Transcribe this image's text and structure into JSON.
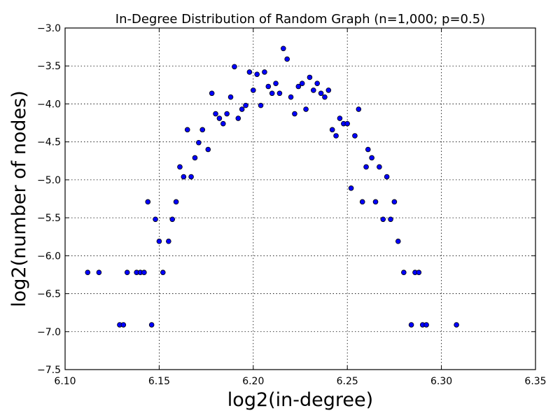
{
  "chart_data": {
    "type": "scatter",
    "title": "In-Degree Distribution of Random Graph (n=1,000; p=0.5)",
    "xlabel": "log2(in-degree)",
    "ylabel": "log2(number of nodes)",
    "xlim": [
      6.1,
      6.35
    ],
    "ylim": [
      -7.5,
      -3.0
    ],
    "xticks": [
      "6.10",
      "6.15",
      "6.20",
      "6.25",
      "6.30",
      "6.35"
    ],
    "yticks": [
      "−3.0",
      "−3.5",
      "−4.0",
      "−4.5",
      "−5.0",
      "−5.5",
      "−6.0",
      "−6.5",
      "−7.0",
      "−7.5"
    ],
    "xtick_values": [
      6.1,
      6.15,
      6.2,
      6.25,
      6.3,
      6.35
    ],
    "ytick_values": [
      -3.0,
      -3.5,
      -4.0,
      -4.5,
      -5.0,
      -5.5,
      -6.0,
      -6.5,
      -7.0,
      -7.5
    ],
    "grid": true,
    "marker_color": "#0000ff",
    "points": [
      [
        6.112,
        -6.22
      ],
      [
        6.118,
        -6.22
      ],
      [
        6.129,
        -6.91
      ],
      [
        6.131,
        -6.91
      ],
      [
        6.133,
        -6.22
      ],
      [
        6.138,
        -6.22
      ],
      [
        6.14,
        -6.22
      ],
      [
        6.142,
        -6.22
      ],
      [
        6.144,
        -5.29
      ],
      [
        6.146,
        -6.91
      ],
      [
        6.148,
        -5.52
      ],
      [
        6.15,
        -5.81
      ],
      [
        6.152,
        -6.22
      ],
      [
        6.155,
        -5.81
      ],
      [
        6.157,
        -5.52
      ],
      [
        6.159,
        -5.29
      ],
      [
        6.161,
        -4.83
      ],
      [
        6.163,
        -4.96
      ],
      [
        6.165,
        -4.34
      ],
      [
        6.167,
        -4.96
      ],
      [
        6.169,
        -4.71
      ],
      [
        6.171,
        -4.51
      ],
      [
        6.173,
        -4.34
      ],
      [
        6.176,
        -4.6
      ],
      [
        6.178,
        -3.86
      ],
      [
        6.18,
        -4.13
      ],
      [
        6.182,
        -4.19
      ],
      [
        6.184,
        -4.26
      ],
      [
        6.186,
        -4.13
      ],
      [
        6.188,
        -3.91
      ],
      [
        6.19,
        -3.51
      ],
      [
        6.192,
        -4.19
      ],
      [
        6.194,
        -4.07
      ],
      [
        6.196,
        -4.02
      ],
      [
        6.198,
        -3.58
      ],
      [
        6.2,
        -3.82
      ],
      [
        6.202,
        -3.61
      ],
      [
        6.204,
        -4.02
      ],
      [
        6.206,
        -3.58
      ],
      [
        6.208,
        -3.77
      ],
      [
        6.21,
        -3.86
      ],
      [
        6.212,
        -3.73
      ],
      [
        6.214,
        -3.86
      ],
      [
        6.216,
        -3.27
      ],
      [
        6.218,
        -3.41
      ],
      [
        6.22,
        -3.91
      ],
      [
        6.222,
        -4.13
      ],
      [
        6.224,
        -3.77
      ],
      [
        6.226,
        -3.73
      ],
      [
        6.228,
        -4.07
      ],
      [
        6.23,
        -3.65
      ],
      [
        6.232,
        -3.82
      ],
      [
        6.234,
        -3.73
      ],
      [
        6.236,
        -3.86
      ],
      [
        6.238,
        -3.91
      ],
      [
        6.24,
        -3.82
      ],
      [
        6.242,
        -4.34
      ],
      [
        6.244,
        -4.42
      ],
      [
        6.246,
        -4.19
      ],
      [
        6.248,
        -4.26
      ],
      [
        6.25,
        -4.26
      ],
      [
        6.252,
        -5.11
      ],
      [
        6.254,
        -4.42
      ],
      [
        6.256,
        -4.07
      ],
      [
        6.258,
        -5.29
      ],
      [
        6.26,
        -4.83
      ],
      [
        6.261,
        -4.6
      ],
      [
        6.263,
        -4.71
      ],
      [
        6.265,
        -5.29
      ],
      [
        6.267,
        -4.83
      ],
      [
        6.269,
        -5.52
      ],
      [
        6.271,
        -4.96
      ],
      [
        6.273,
        -5.52
      ],
      [
        6.275,
        -5.29
      ],
      [
        6.277,
        -5.81
      ],
      [
        6.28,
        -6.22
      ],
      [
        6.284,
        -6.91
      ],
      [
        6.286,
        -6.22
      ],
      [
        6.288,
        -6.22
      ],
      [
        6.29,
        -6.91
      ],
      [
        6.292,
        -6.91
      ],
      [
        6.308,
        -6.91
      ]
    ]
  }
}
